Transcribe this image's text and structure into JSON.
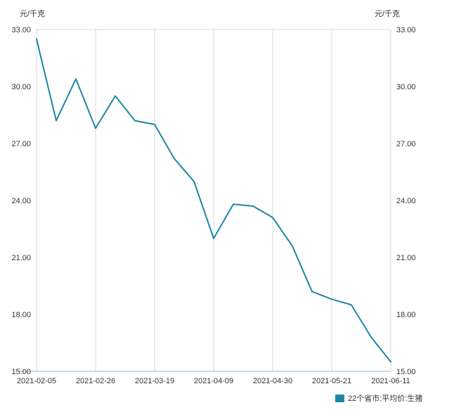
{
  "chart_data": {
    "type": "line",
    "title": "",
    "ylabel_left": "元/千克",
    "ylabel_right": "元/千克",
    "legend": "22个省市:平均价:生猪",
    "line_color": "#1f85a8",
    "grid_color": "#d9d9d9",
    "axis_text_color": "#333333",
    "bottom_axis_color": "#8fbcd4",
    "ylim": [
      15,
      33
    ],
    "y_ticks": [
      15.0,
      18.0,
      21.0,
      24.0,
      27.0,
      30.0,
      33.0
    ],
    "x": [
      "2021-02-05",
      "2021-02-12",
      "2021-02-19",
      "2021-02-26",
      "2021-03-05",
      "2021-03-12",
      "2021-03-19",
      "2021-03-26",
      "2021-04-02",
      "2021-04-09",
      "2021-04-16",
      "2021-04-23",
      "2021-04-30",
      "2021-05-07",
      "2021-05-14",
      "2021-05-21",
      "2021-05-28",
      "2021-06-04",
      "2021-06-11"
    ],
    "x_tick_labels": [
      "2021-02-05",
      "2021-02-26",
      "2021-03-19",
      "2021-04-09",
      "2021-04-30",
      "2021-05-21",
      "2021-06-11"
    ],
    "values": [
      32.5,
      28.2,
      30.4,
      27.8,
      29.5,
      28.2,
      28.0,
      26.2,
      25.0,
      22.0,
      23.8,
      23.7,
      23.1,
      21.6,
      19.2,
      18.8,
      18.5,
      16.8,
      15.5
    ],
    "grid": "vertical",
    "legend_position": "bottom-right"
  }
}
